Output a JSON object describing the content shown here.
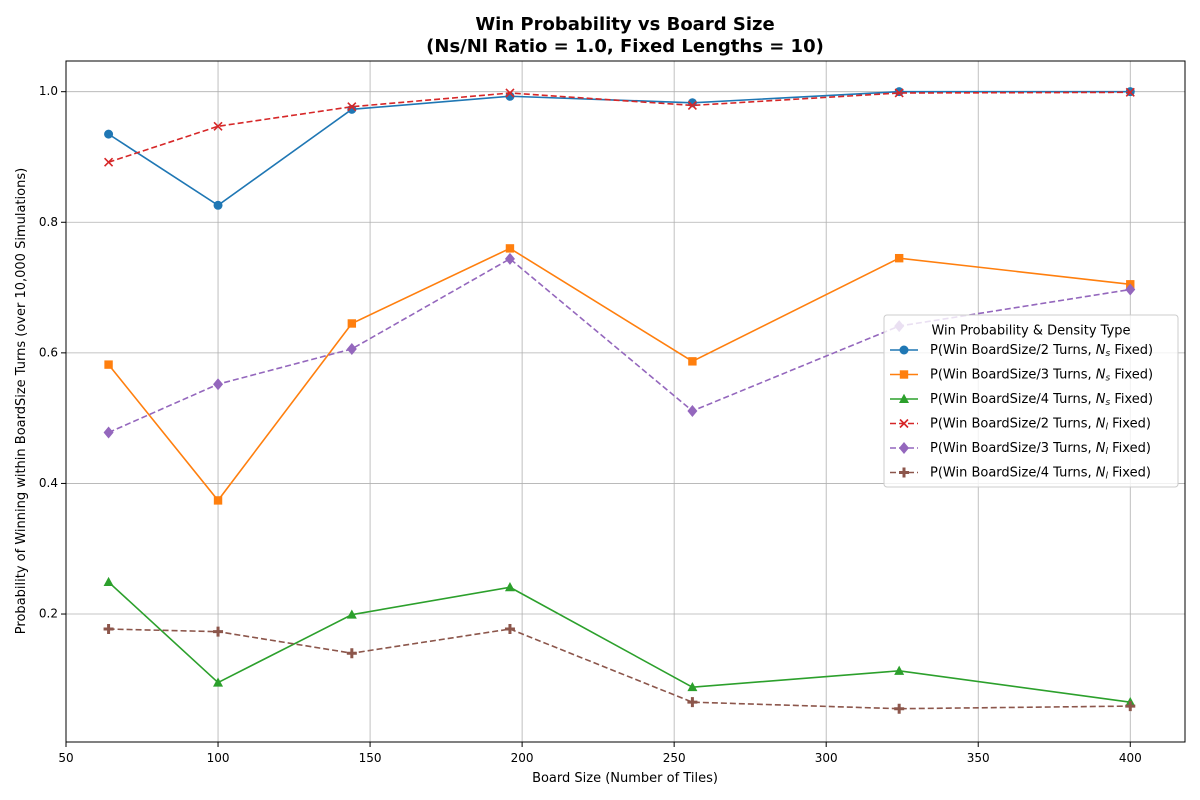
{
  "chart_data": {
    "type": "line",
    "title": "Win Probability vs Board Size",
    "subtitle": "(Ns/Nl Ratio = 1.0, Fixed Lengths = 10)",
    "xlabel": "Board Size (Number of Tiles)",
    "ylabel": "Probability of Winning within BoardSize Turns (over 10,000 Simulations)",
    "xlim": [
      50,
      418
    ],
    "ylim": [
      0.004,
      1.047
    ],
    "xticks": [
      50,
      100,
      150,
      200,
      250,
      300,
      350,
      400
    ],
    "yticks": [
      0.2,
      0.4,
      0.6,
      0.8,
      1.0
    ],
    "grid": true,
    "legend_title": "Win Probability & Density Type",
    "legend_position": "center-right",
    "x": [
      64,
      100,
      144,
      196,
      256,
      324,
      400
    ],
    "series": [
      {
        "name": "P(Win BoardSize/2 Turns, N_s Fixed)",
        "legend_prefix": "P(Win BoardSize/2 Turns, ",
        "legend_var": "N",
        "legend_sub": "s",
        "legend_suffix": " Fixed)",
        "color": "#1f77b4",
        "linestyle": "solid",
        "marker": "circle",
        "values": [
          0.935,
          0.826,
          0.973,
          0.993,
          0.983,
          1.0,
          1.0
        ]
      },
      {
        "name": "P(Win BoardSize/3 Turns, N_s Fixed)",
        "legend_prefix": "P(Win BoardSize/3 Turns, ",
        "legend_var": "N",
        "legend_sub": "s",
        "legend_suffix": " Fixed)",
        "color": "#ff7f0e",
        "linestyle": "solid",
        "marker": "square",
        "values": [
          0.582,
          0.374,
          0.645,
          0.76,
          0.587,
          0.745,
          0.705
        ]
      },
      {
        "name": "P(Win BoardSize/4 Turns, N_s Fixed)",
        "legend_prefix": "P(Win BoardSize/4 Turns, ",
        "legend_var": "N",
        "legend_sub": "s",
        "legend_suffix": " Fixed)",
        "color": "#2ca02c",
        "linestyle": "solid",
        "marker": "triangle",
        "values": [
          0.249,
          0.095,
          0.199,
          0.241,
          0.088,
          0.113,
          0.065
        ]
      },
      {
        "name": "P(Win BoardSize/2 Turns, N_l Fixed)",
        "legend_prefix": "P(Win BoardSize/2 Turns, ",
        "legend_var": "N",
        "legend_sub": "l",
        "legend_suffix": " Fixed)",
        "color": "#d62728",
        "linestyle": "dashed",
        "marker": "x",
        "values": [
          0.892,
          0.947,
          0.977,
          0.998,
          0.979,
          0.998,
          0.999
        ]
      },
      {
        "name": "P(Win BoardSize/3 Turns, N_l Fixed)",
        "legend_prefix": "P(Win BoardSize/3 Turns, ",
        "legend_var": "N",
        "legend_sub": "l",
        "legend_suffix": " Fixed)",
        "color": "#9467bd",
        "linestyle": "dashed",
        "marker": "diamond",
        "values": [
          0.478,
          0.552,
          0.606,
          0.744,
          0.511,
          0.641,
          0.697
        ]
      },
      {
        "name": "P(Win BoardSize/4 Turns, N_l Fixed)",
        "legend_prefix": "P(Win BoardSize/4 Turns, ",
        "legend_var": "N",
        "legend_sub": "l",
        "legend_suffix": " Fixed)",
        "color": "#8c564b",
        "linestyle": "dashed",
        "marker": "plus",
        "values": [
          0.177,
          0.173,
          0.14,
          0.177,
          0.065,
          0.055,
          0.059
        ]
      }
    ]
  }
}
